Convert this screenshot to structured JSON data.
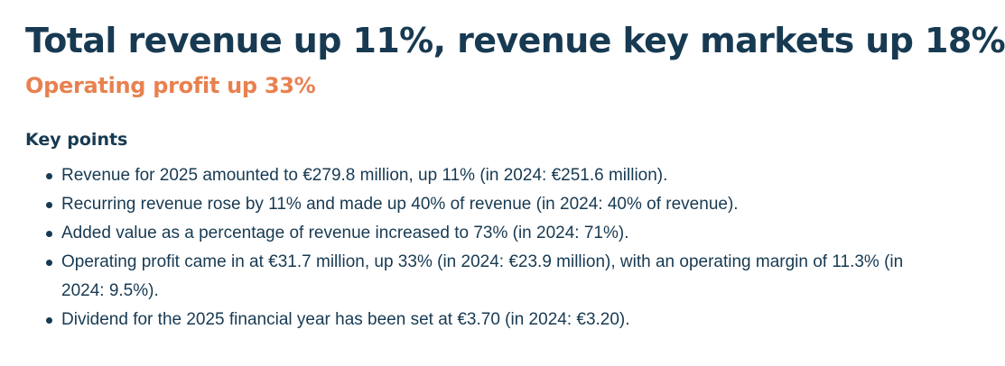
{
  "headline": "Total revenue up 11%, revenue key markets up 18%",
  "subheadline": "Operating profit up 33%",
  "key_points": {
    "heading": "Key points",
    "items": [
      "Revenue for 2025 amounted to €279.8 million, up 11% (in 2024: €251.6 million).",
      "Recurring revenue rose by 11% and made up 40% of revenue (in 2024: 40% of revenue).",
      "Added value as a percentage of revenue increased to 73% (in 2024: 71%).",
      "Operating profit came in at €31.7 million, up 33% (in 2024: €23.9 million), with an operating margin of 11.3% (in 2024: 9.5%).",
      "Dividend for the 2025 financial year has been set at €3.70 (in 2024: €3.20)."
    ]
  },
  "colors": {
    "primary_text": "#173a52",
    "accent": "#e8814f",
    "background": "#ffffff"
  }
}
